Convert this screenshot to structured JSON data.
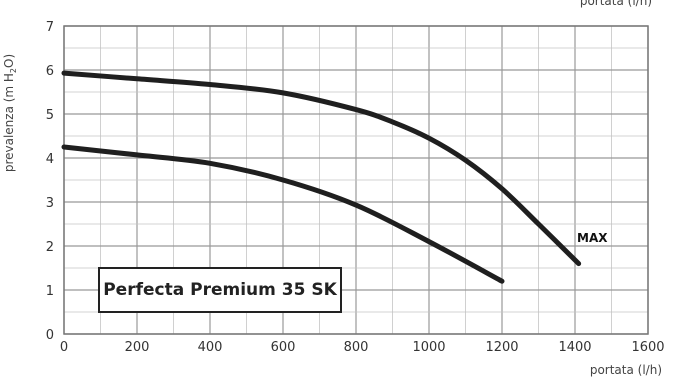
{
  "chart_data": {
    "type": "line",
    "title": "",
    "xlabel": "portata (l/h)",
    "xlabel_top": "portata (l/h)",
    "ylabel_parts": {
      "main": "prevalenza (m H",
      "sub": "2",
      "end": "O)"
    },
    "xlim": [
      0,
      1600
    ],
    "ylim": [
      0,
      7
    ],
    "x_ticks": [
      0,
      200,
      400,
      600,
      800,
      1000,
      1200,
      1400,
      1600
    ],
    "y_ticks": [
      0,
      1,
      2,
      3,
      4,
      5,
      6,
      7
    ],
    "x_tick_labels": [
      "0",
      "200",
      "400",
      "600",
      "800",
      "1000",
      "1200",
      "1400",
      "1600"
    ],
    "y_tick_labels": [
      "0",
      "1",
      "2",
      "3",
      "4",
      "5",
      "6",
      "7"
    ],
    "grid": true,
    "minor_grid_x_step": 100,
    "minor_grid_y_step": 0.5,
    "series": [
      {
        "name": "MAX",
        "x": [
          0,
          200,
          400,
          600,
          800,
          900,
          1000,
          1100,
          1200,
          1300,
          1410
        ],
        "y": [
          5.93,
          5.8,
          5.67,
          5.48,
          5.1,
          4.82,
          4.45,
          3.95,
          3.3,
          2.5,
          1.6
        ]
      },
      {
        "name": "",
        "x": [
          0,
          200,
          400,
          600,
          800,
          1000,
          1200
        ],
        "y": [
          4.25,
          4.07,
          3.88,
          3.5,
          2.93,
          2.1,
          1.2
        ]
      }
    ],
    "label_model": "Perfecta Premium 35 SK"
  }
}
